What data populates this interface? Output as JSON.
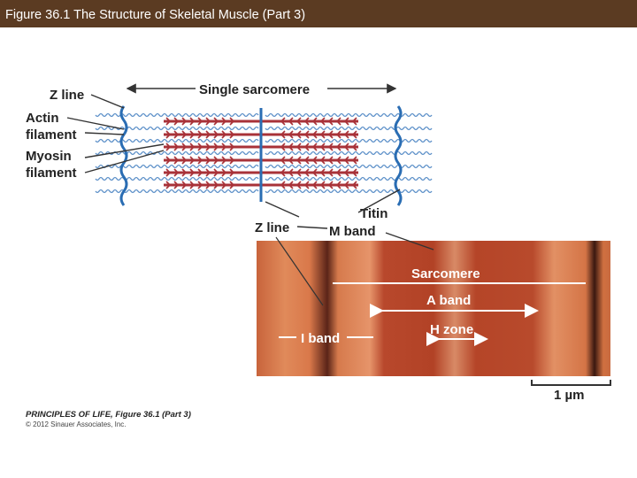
{
  "header": {
    "title": "Figure 36.1  The Structure of Skeletal Muscle (Part 3)"
  },
  "diagram": {
    "labels": {
      "z_line_top": "Z line",
      "single_sarcomere": "Single sarcomere",
      "actin_filament": [
        "Actin",
        "filament"
      ],
      "myosin_filament": [
        "Myosin",
        "filament"
      ],
      "titin": "Titin",
      "z_line_bottom": "Z line",
      "m_band": "M band"
    }
  },
  "micrograph": {
    "sarcomere": "Sarcomere",
    "a_band": "A band",
    "h_zone": "H zone",
    "i_band": "I band",
    "scale": "1 µm"
  },
  "footer": {
    "source": "PRINCIPLES OF LIFE, Figure 36.1 (Part 3)",
    "copyright": "© 2012 Sinauer Associates, Inc."
  }
}
